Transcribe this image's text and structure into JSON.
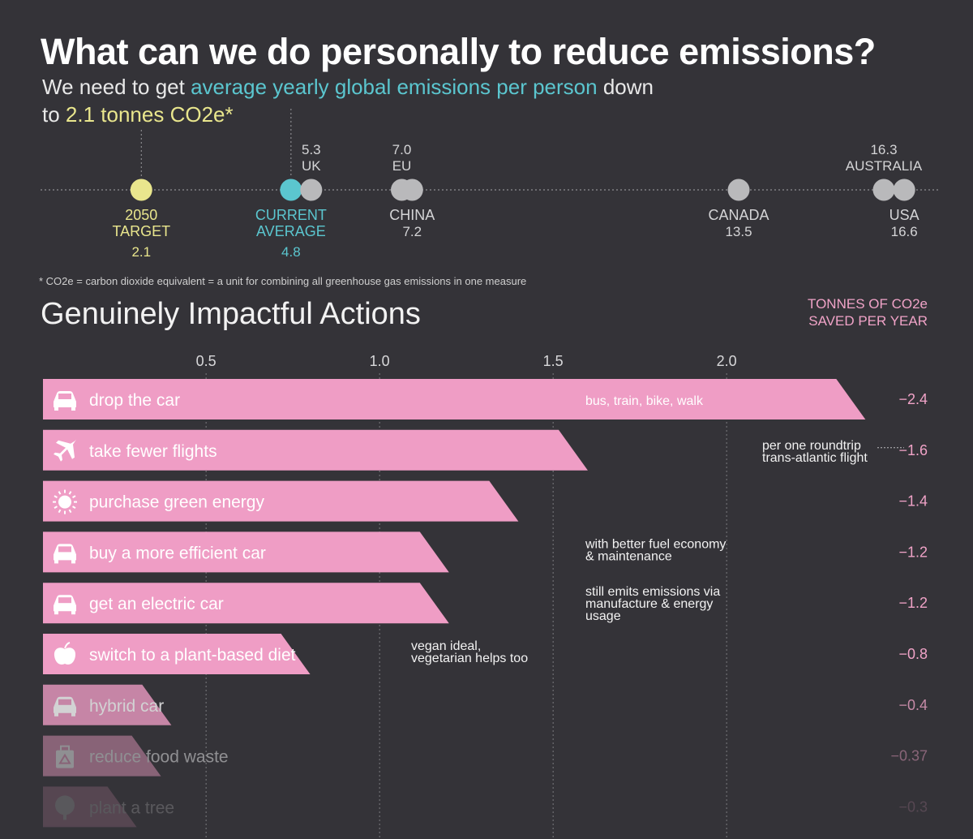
{
  "title": "What can we do personally to reduce emissions?",
  "subtitle": {
    "line1_pre": "We need to get ",
    "line1_highlight": "average yearly global emissions per person",
    "line1_post": " down",
    "line2_pre": "to ",
    "line2_highlight": "2.1 tonnes CO2e*"
  },
  "footnote": "* CO2e = carbon dioxide equivalent = a unit for combining all greenhouse gas emissions in one measure",
  "section_title": "Genuinely Impactful Actions",
  "units_label": [
    "TONNES OF CO2e",
    "SAVED PER YEAR"
  ],
  "colors": {
    "background": "#343338",
    "bar": "#ef9dc5",
    "target": "#e9e68d",
    "current": "#5bc6cf",
    "country": "#b9b9bb",
    "value_text": "#f0a3c7"
  },
  "chart_data": [
    {
      "type": "scatter",
      "description_scale": "tonnes CO2e per person per year",
      "points": [
        {
          "label_lines": [
            "2050",
            "TARGET"
          ],
          "value": 2.1,
          "value_text": "2.1",
          "kind": "target",
          "label_side": "below"
        },
        {
          "label_lines": [
            "CURRENT",
            "AVERAGE"
          ],
          "value": 4.8,
          "value_text": "4.8",
          "kind": "current",
          "label_side": "below"
        },
        {
          "label_lines": [
            "UK"
          ],
          "value": 5.3,
          "value_text": "5.3",
          "kind": "country",
          "label_side": "above"
        },
        {
          "label_lines": [
            "EU"
          ],
          "value": 7.0,
          "value_text": "7.0",
          "kind": "country",
          "label_side": "above"
        },
        {
          "label_lines": [
            "CHINA"
          ],
          "value": 7.2,
          "value_text": "7.2",
          "kind": "country",
          "label_side": "below"
        },
        {
          "label_lines": [
            "CANADA"
          ],
          "value": 13.5,
          "value_text": "13.5",
          "kind": "country",
          "label_side": "below"
        },
        {
          "label_lines": [
            "AUSTRALIA"
          ],
          "value": 16.3,
          "value_text": "16.3",
          "kind": "country",
          "label_side": "above"
        },
        {
          "label_lines": [
            "USA"
          ],
          "value": 16.6,
          "value_text": "16.6",
          "kind": "country",
          "label_side": "below"
        }
      ]
    },
    {
      "type": "bar",
      "xlim": [
        0,
        2.4
      ],
      "xticks": [
        0.5,
        1.0,
        1.5,
        2.0
      ],
      "xtick_labels": [
        "0.5",
        "1.0",
        "1.5",
        "2.0"
      ],
      "ylabel": "TONNES OF CO2e SAVED PER YEAR",
      "bars": [
        {
          "label": "drop the car",
          "icon": "car-icon",
          "value": 2.4,
          "value_text": "−2.4",
          "note": [
            "bus, train, bike, walk"
          ]
        },
        {
          "label": "take fewer flights",
          "icon": "plane-icon",
          "value": 1.6,
          "value_text": "−1.6",
          "note": [
            "per one roundtrip",
            "trans-atlantic flight"
          ]
        },
        {
          "label": "purchase green energy",
          "icon": "sun-icon",
          "value": 1.4,
          "value_text": "−1.4",
          "note": []
        },
        {
          "label": "buy a more efficient car",
          "icon": "car-icon",
          "value": 1.2,
          "value_text": "−1.2",
          "note": [
            "with better fuel economy",
            "& maintenance"
          ]
        },
        {
          "label": "get an electric car",
          "icon": "car-icon",
          "value": 1.2,
          "value_text": "−1.2",
          "note": [
            "still emits emissions via",
            "manufacture & energy",
            "usage"
          ]
        },
        {
          "label": "switch to a plant-based diet",
          "icon": "apple-icon",
          "value": 0.8,
          "value_text": "−0.8",
          "note": [
            "vegan ideal,",
            "vegetarian helps too"
          ]
        },
        {
          "label": "hybrid car",
          "icon": "car-icon",
          "value": 0.4,
          "value_text": "−0.4",
          "note": []
        },
        {
          "label": "reduce food waste",
          "icon": "recycle-bag-icon",
          "value": 0.37,
          "value_text": "−0.37",
          "note": []
        },
        {
          "label": "plant a tree",
          "icon": "tree-icon",
          "value": 0.3,
          "value_text": "−0.3",
          "note": []
        }
      ]
    }
  ]
}
